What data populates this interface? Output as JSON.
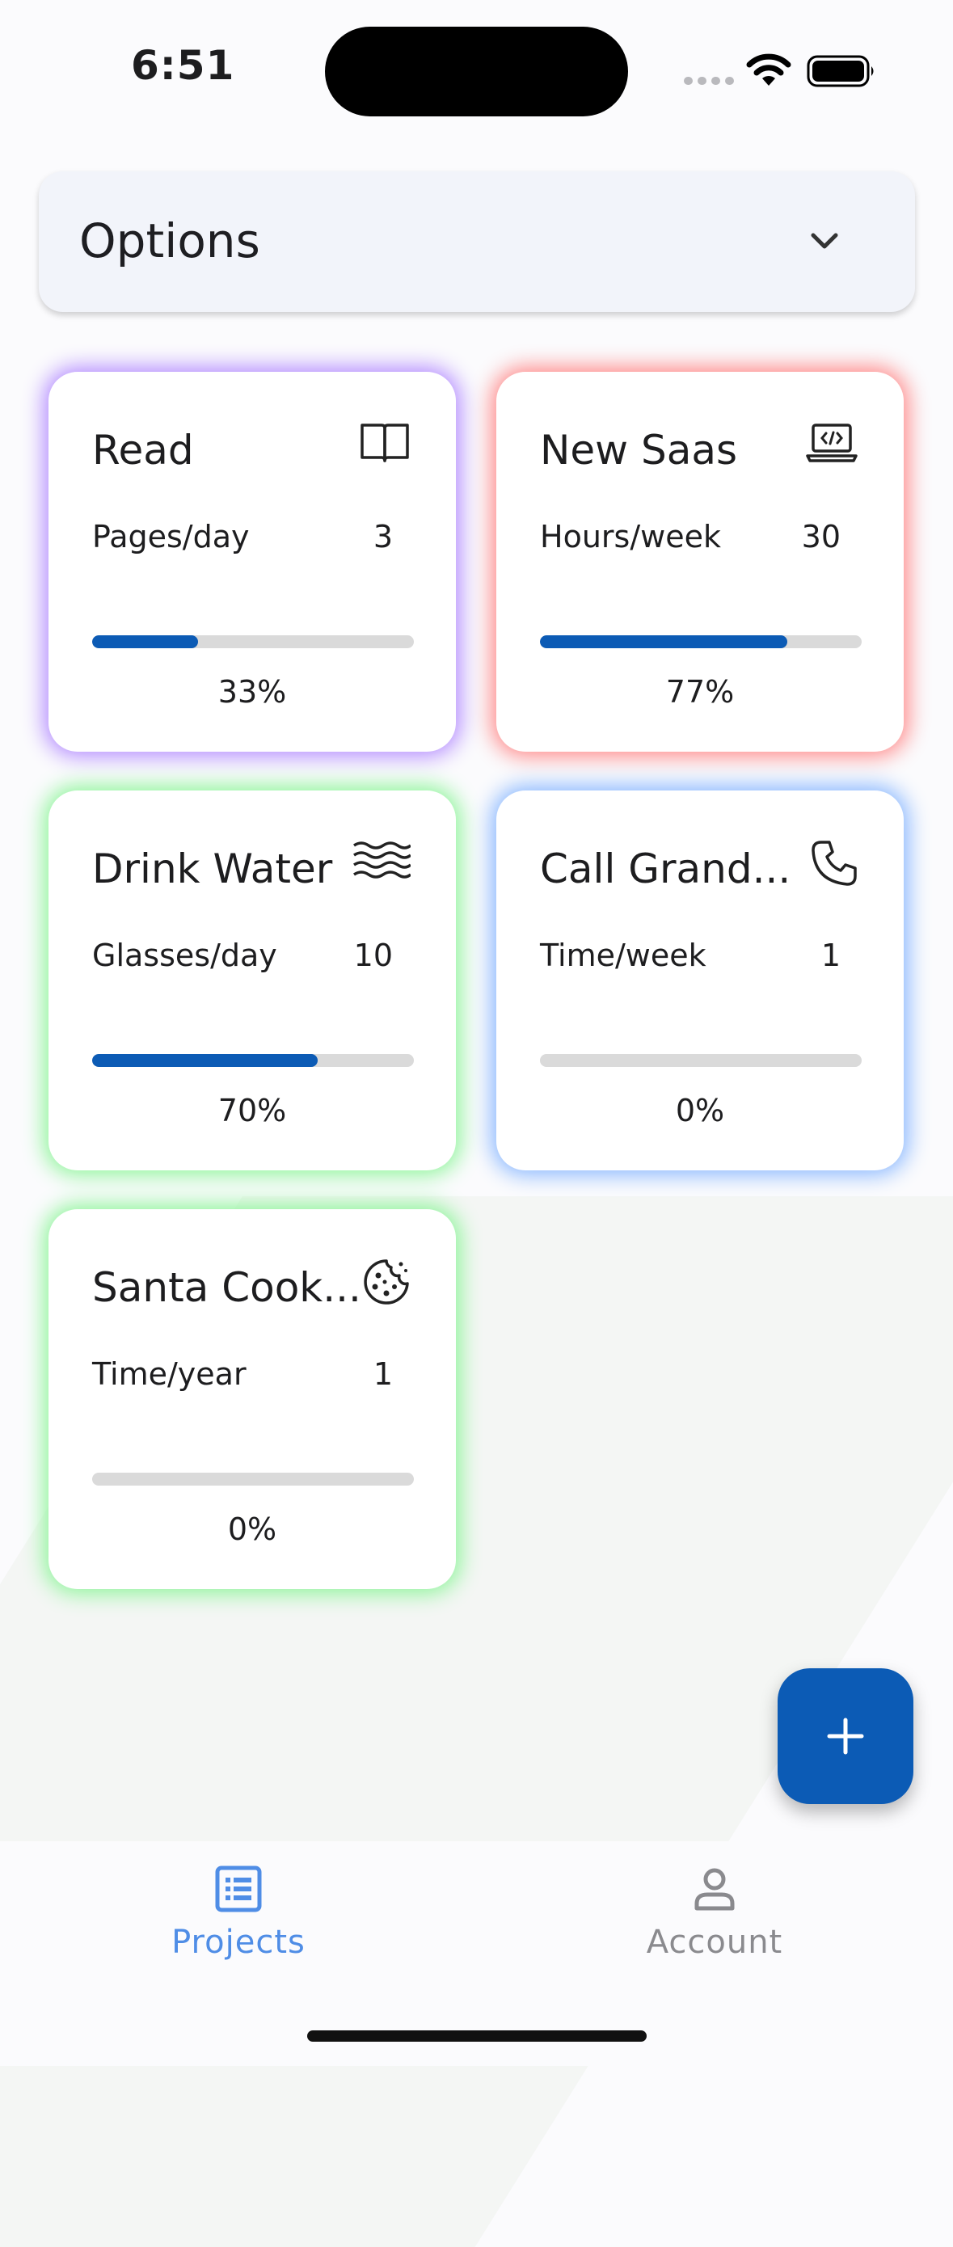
{
  "status_bar": {
    "time": "6:51"
  },
  "options": {
    "label": "Options"
  },
  "cards": [
    {
      "title": "Read",
      "icon": "book-icon",
      "metric_label": "Pages/day",
      "metric_value": "3",
      "progress": 0.33,
      "percent": "33%",
      "glow": "#b48cff"
    },
    {
      "title": "New Saas",
      "icon": "laptop-code-icon",
      "metric_label": "Hours/week",
      "metric_value": "30",
      "progress": 0.77,
      "percent": "77%",
      "glow": "#ff8a8a"
    },
    {
      "title": "Drink Water",
      "icon": "water-waves-icon",
      "metric_label": "Glasses/day",
      "metric_value": "10",
      "progress": 0.7,
      "percent": "70%",
      "glow": "#8ef59a"
    },
    {
      "title": "Call Grand...",
      "icon": "phone-icon",
      "metric_label": "Time/week",
      "metric_value": "1",
      "progress": 0.0,
      "percent": "0%",
      "glow": "#8ab8ff"
    },
    {
      "title": "Santa Cook...",
      "icon": "cookie-icon",
      "metric_label": "Time/year",
      "metric_value": "1",
      "progress": 0.0,
      "percent": "0%",
      "glow": "#8ef59a"
    }
  ],
  "bottom_nav": {
    "items": [
      {
        "label": "Projects",
        "icon": "list-icon",
        "active": true
      },
      {
        "label": "Account",
        "icon": "person-icon",
        "active": false
      }
    ]
  },
  "colors": {
    "accent": "#0c5bb5",
    "active_nav": "#4f8de6",
    "inactive_nav": "#8a8a8e"
  }
}
